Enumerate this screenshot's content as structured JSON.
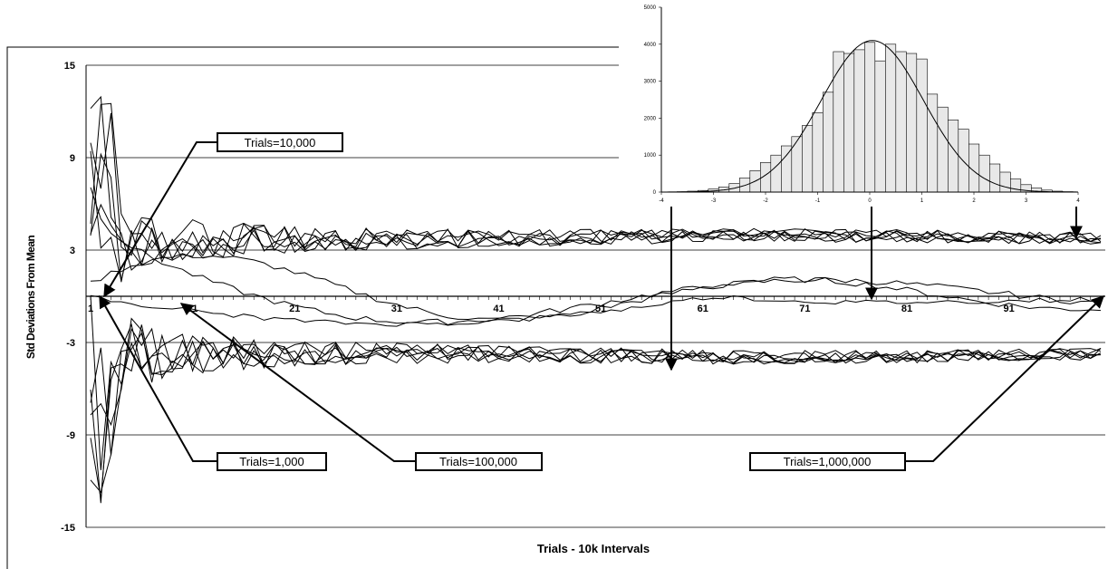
{
  "chart_data": [
    {
      "type": "line",
      "title": "",
      "xlabel": "Trials - 10k Intervals",
      "ylabel": "Std Deviations From Mean",
      "ylim": [
        -15,
        15
      ],
      "xlim": [
        1,
        100
      ],
      "y_ticks": [
        "15",
        "9",
        "3",
        "-3",
        "-9",
        "-15"
      ],
      "x_ticks": [
        "1",
        "11",
        "21",
        "31",
        "41",
        "51",
        "61",
        "71",
        "81",
        "91"
      ],
      "grid": "horizontal",
      "series_groups": [
        {
          "group": "upper",
          "converges_to": 3.7,
          "count": 6
        },
        {
          "group": "middle",
          "converges_to": 0,
          "count": 3
        },
        {
          "group": "lower",
          "converges_to": -3.7,
          "count": 6
        }
      ],
      "annotations": [
        "Trials=10,000",
        "Trials=1,000",
        "Trials=100,000",
        "Trials=1,000,000"
      ]
    },
    {
      "type": "bar",
      "title": "",
      "x_ticks": [
        "-4",
        "-3",
        "-2",
        "-1",
        "0",
        "1",
        "2",
        "3",
        "4"
      ],
      "y_ticks": [
        "0",
        "1000",
        "2000",
        "3000",
        "4000",
        "5000"
      ],
      "xlim": [
        -4,
        4
      ],
      "ylim": [
        0,
        5000
      ],
      "bins": [
        -3.8,
        -3.6,
        -3.4,
        -3.2,
        -3.0,
        -2.8,
        -2.6,
        -2.4,
        -2.2,
        -2.0,
        -1.8,
        -1.6,
        -1.4,
        -1.2,
        -1.0,
        -0.8,
        -0.6,
        -0.4,
        -0.2,
        0.0,
        0.2,
        0.4,
        0.6,
        0.8,
        1.0,
        1.2,
        1.4,
        1.6,
        1.8,
        2.0,
        2.2,
        2.4,
        2.6,
        2.8,
        3.0,
        3.2,
        3.4,
        3.6,
        3.8
      ],
      "values": [
        5,
        10,
        25,
        45,
        80,
        140,
        230,
        380,
        580,
        800,
        1000,
        1250,
        1500,
        1800,
        2150,
        2700,
        3800,
        3750,
        3850,
        4050,
        3550,
        4000,
        3800,
        3750,
        3600,
        2650,
        2300,
        1950,
        1700,
        1300,
        1000,
        760,
        540,
        350,
        200,
        110,
        55,
        25,
        10
      ],
      "fit": "normal curve"
    }
  ]
}
